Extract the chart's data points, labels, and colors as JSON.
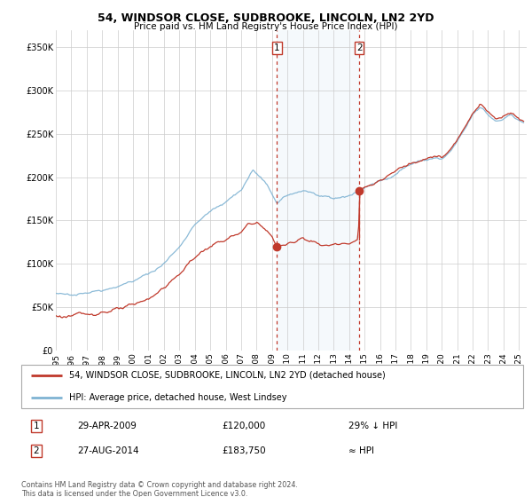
{
  "title1": "54, WINDSOR CLOSE, SUDBROOKE, LINCOLN, LN2 2YD",
  "title2": "Price paid vs. HM Land Registry's House Price Index (HPI)",
  "legend1": "54, WINDSOR CLOSE, SUDBROOKE, LINCOLN, LN2 2YD (detached house)",
  "legend2": "HPI: Average price, detached house, West Lindsey",
  "sale1_date_label": "29-APR-2009",
  "sale1_price": 120000,
  "sale1_price_label": "£120,000",
  "sale1_hpi_label": "29% ↓ HPI",
  "sale1_year": 2009.33,
  "sale2_date_label": "27-AUG-2014",
  "sale2_price": 183750,
  "sale2_price_label": "£183,750",
  "sale2_hpi_label": "≈ HPI",
  "sale2_year": 2014.66,
  "footer": "Contains HM Land Registry data © Crown copyright and database right 2024.\nThis data is licensed under the Open Government Licence v3.0.",
  "red_color": "#c0392b",
  "blue_color": "#7fb3d3",
  "shading_color": "#ddeeff",
  "background_color": "#ffffff",
  "ylim": [
    0,
    370000
  ],
  "xlim_start": 1995,
  "xlim_end": 2025.5
}
